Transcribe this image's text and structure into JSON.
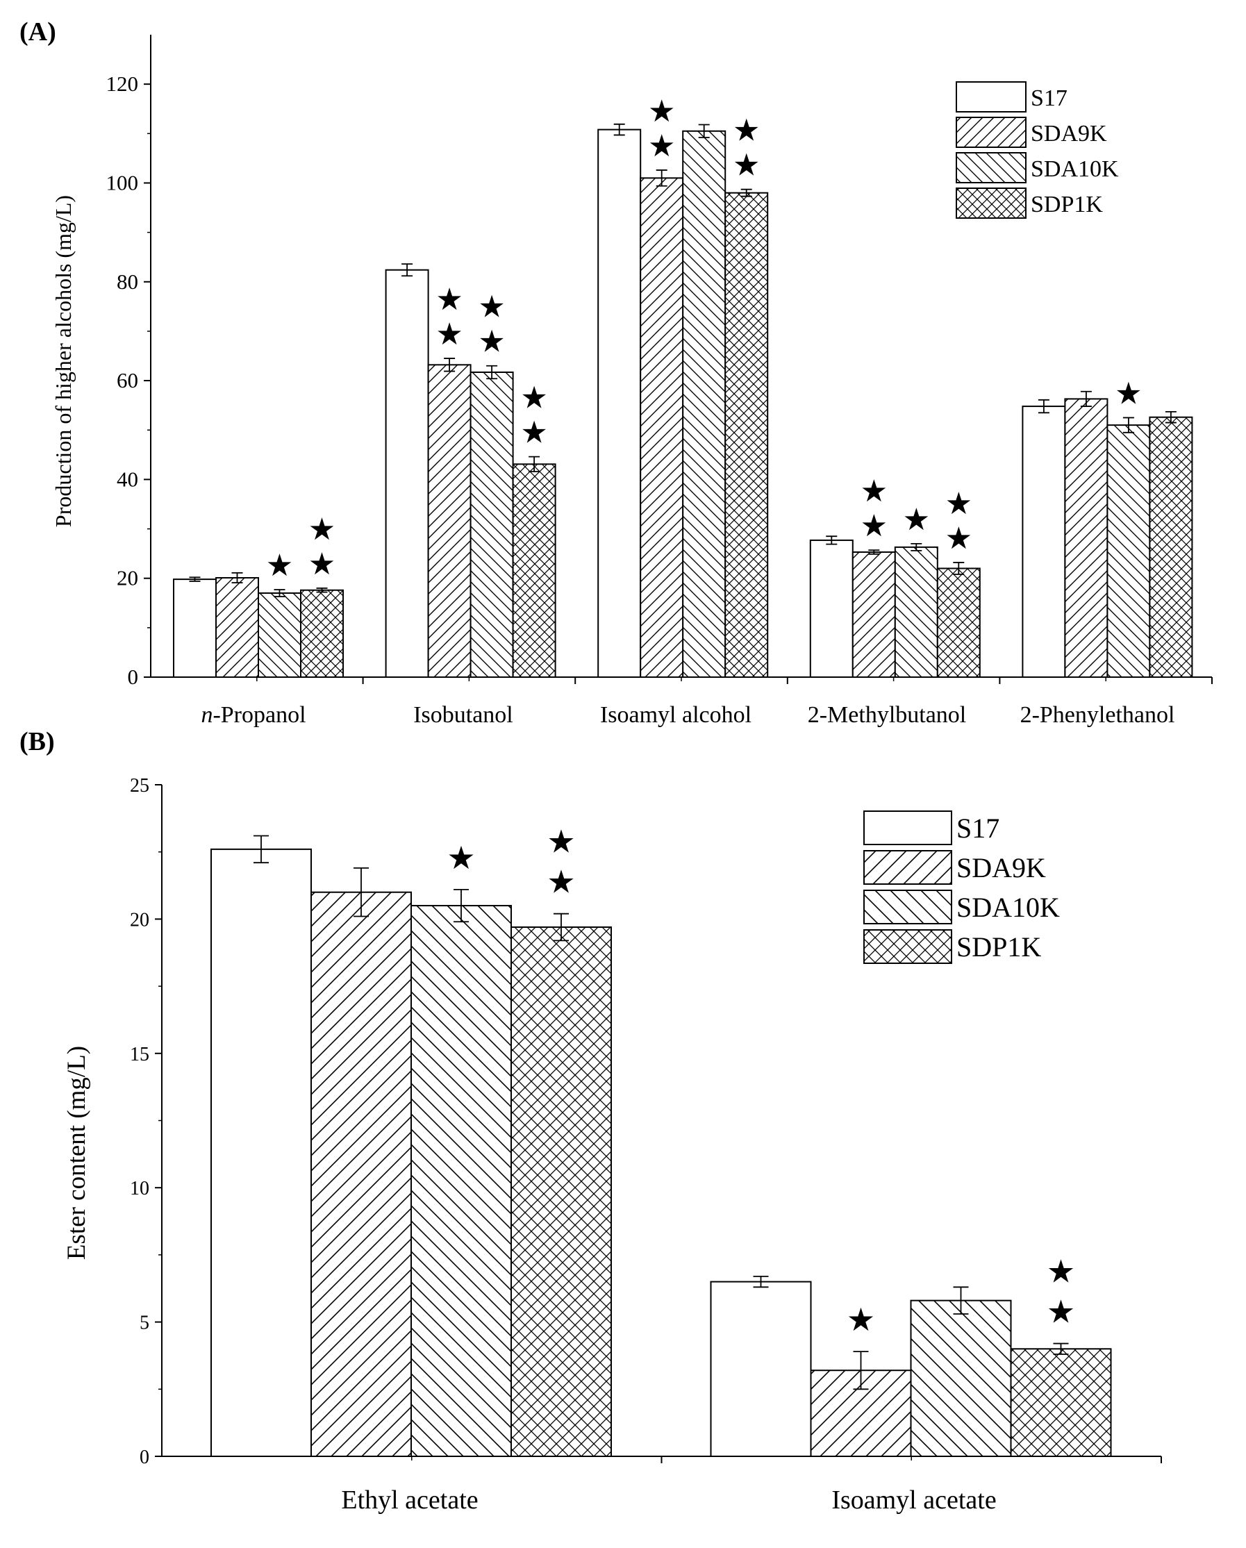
{
  "chart_data": [
    {
      "panel": "(A)",
      "type": "bar",
      "ylabel": "Production of higher alcohols (mg/L)",
      "xlabel": "",
      "ylim": [
        0,
        130
      ],
      "yticks": [
        0,
        20,
        40,
        60,
        80,
        100,
        120
      ],
      "categories": [
        "n-Propanol",
        "Isobutanol",
        "Isoamyl alcohol",
        "2-Methylbutanol",
        "2-Phenylethanol"
      ],
      "series": [
        {
          "name": "S17",
          "pattern": "none",
          "values": [
            19.8,
            82.4,
            110.8,
            27.7,
            54.8
          ],
          "errors": [
            0.4,
            1.2,
            1.1,
            0.8,
            1.3
          ]
        },
        {
          "name": "SDA9K",
          "pattern": "forward-diagonal",
          "values": [
            20.1,
            63.2,
            101.0,
            25.3,
            56.3
          ],
          "errors": [
            1.0,
            1.3,
            1.6,
            0.4,
            1.5
          ]
        },
        {
          "name": "SDA10K",
          "pattern": "backward-diagonal",
          "values": [
            17.0,
            61.7,
            110.5,
            26.3,
            51.0
          ],
          "errors": [
            0.7,
            1.3,
            1.3,
            0.7,
            1.5
          ]
        },
        {
          "name": "SDP1K",
          "pattern": "cross-hatch",
          "values": [
            17.6,
            43.1,
            98.0,
            22.0,
            52.6
          ],
          "errors": [
            0.4,
            1.5,
            0.7,
            1.2,
            1.1
          ]
        }
      ],
      "significance_stars": [
        [
          0,
          0,
          1,
          2
        ],
        [
          0,
          2,
          2,
          2
        ],
        [
          0,
          2,
          0,
          2
        ],
        [
          0,
          2,
          1,
          2
        ],
        [
          0,
          0,
          1,
          0
        ]
      ],
      "legend": {
        "position": "top-right",
        "entries": [
          "S17",
          "SDA9K",
          "SDA10K",
          "SDP1K"
        ]
      }
    },
    {
      "panel": "(B)",
      "type": "bar",
      "ylabel": "Ester content (mg/L)",
      "xlabel": "",
      "ylim": [
        0,
        25
      ],
      "yticks": [
        0,
        5,
        10,
        15,
        20,
        25
      ],
      "categories": [
        "Ethyl acetate",
        "Isoamyl acetate"
      ],
      "series": [
        {
          "name": "S17",
          "pattern": "none",
          "values": [
            22.6,
            6.5
          ],
          "errors": [
            0.5,
            0.2
          ]
        },
        {
          "name": "SDA9K",
          "pattern": "forward-diagonal",
          "values": [
            21.0,
            3.2
          ],
          "errors": [
            0.9,
            0.7
          ]
        },
        {
          "name": "SDA10K",
          "pattern": "backward-diagonal",
          "values": [
            20.5,
            5.8
          ],
          "errors": [
            0.6,
            0.5
          ]
        },
        {
          "name": "SDP1K",
          "pattern": "cross-hatch",
          "values": [
            19.7,
            4.0
          ],
          "errors": [
            0.5,
            0.2
          ]
        }
      ],
      "significance_stars": [
        [
          0,
          0,
          1,
          2
        ],
        [
          0,
          1,
          0,
          2
        ]
      ],
      "legend": {
        "position": "top-right",
        "entries": [
          "S17",
          "SDA9K",
          "SDA10K",
          "SDP1K"
        ]
      }
    }
  ]
}
